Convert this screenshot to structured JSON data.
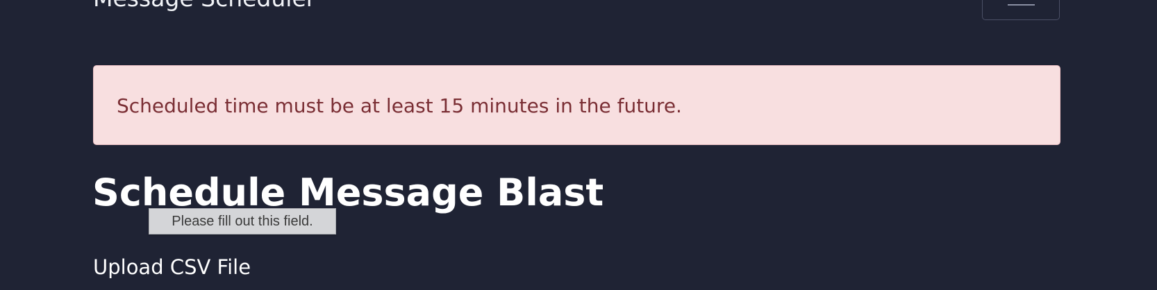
{
  "navbar": {
    "brand": "Message Scheduler",
    "toggler_icon": "hamburger-menu-icon"
  },
  "alert": {
    "message": "Scheduled time must be at least 15 minutes in the future.",
    "type": "danger"
  },
  "page": {
    "title": "Schedule Message Blast"
  },
  "validation_tooltip": {
    "text": "Please fill out this field."
  },
  "form": {
    "csv_label": "Upload CSV File"
  },
  "colors": {
    "background": "#1f2334",
    "alert_background": "#f8dfe0",
    "alert_text": "#7a2e34"
  }
}
